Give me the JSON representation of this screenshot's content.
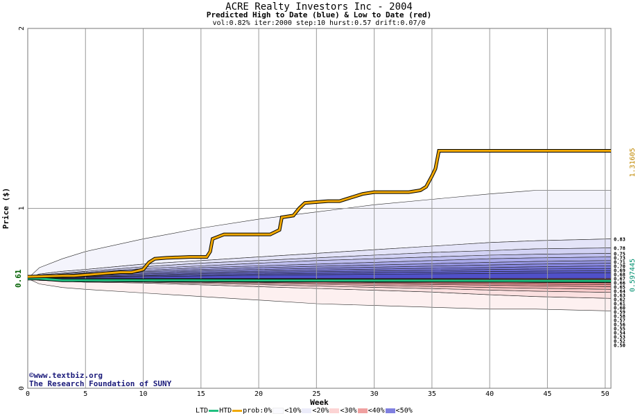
{
  "header": {
    "title": "ACRE Realty Investors Inc - 2004",
    "subtitle": "Predicted High to Date (blue) &  Low to Date (red)",
    "params": "vol:0.82% iter:2000 step:10 hurst:0.57 drift:0.07/0"
  },
  "credits": {
    "site": "©www.textbiz.org",
    "org": "The Research Foundation of SUNY"
  },
  "legend": {
    "ltd": "LTD",
    "htd": "HTD",
    "prob": "prob:0%",
    "b10": "<10%",
    "b20": "<20%",
    "b30": "<30%",
    "b40": "<40%",
    "b50": "<50%"
  },
  "chart_data": {
    "type": "line",
    "xlabel": "Week",
    "ylabel": "Price ($)",
    "xlim": [
      0,
      50.5
    ],
    "ylim": [
      0,
      2
    ],
    "xticks": [
      0,
      5,
      10,
      15,
      20,
      25,
      30,
      35,
      40,
      45,
      50
    ],
    "yticks": [
      0,
      1,
      2
    ],
    "grid": true,
    "start_price": 0.61,
    "start_label": "0.61",
    "end_high_label": "1.31605",
    "end_low_label": "0.597445",
    "colors": {
      "htd": "#f0a800",
      "ltd": "#20c080",
      "high_label": "#c08800",
      "low_label": "#009070",
      "start_label": "#006000"
    },
    "series": [
      {
        "name": "HTD",
        "x": [
          0,
          3,
          4,
          7,
          8,
          9,
          10,
          10.5,
          11,
          12,
          14,
          15.5,
          15.8,
          16,
          17,
          18,
          21,
          21.8,
          22,
          23,
          23.5,
          24,
          26,
          27,
          27.5,
          28,
          29,
          30,
          32,
          33,
          34,
          34.5,
          35,
          35.3,
          35.6,
          50.5
        ],
        "y": [
          0.62,
          0.625,
          0.625,
          0.64,
          0.645,
          0.645,
          0.66,
          0.7,
          0.72,
          0.725,
          0.73,
          0.73,
          0.76,
          0.83,
          0.855,
          0.855,
          0.855,
          0.88,
          0.95,
          0.96,
          1.0,
          1.03,
          1.04,
          1.04,
          1.05,
          1.06,
          1.08,
          1.09,
          1.09,
          1.09,
          1.1,
          1.12,
          1.18,
          1.22,
          1.32,
          1.32
        ]
      },
      {
        "name": "LTD",
        "x": [
          0,
          1,
          2,
          3,
          13.5,
          50.5
        ],
        "y": [
          0.61,
          0.61,
          0.605,
          0.6,
          0.6,
          0.597
        ]
      }
    ],
    "bands": {
      "x": [
        0,
        1,
        3,
        5,
        10,
        15,
        20,
        25,
        30,
        35,
        40,
        44,
        50.5
      ],
      "high": [
        [
          0.61,
          0.67,
          0.72,
          0.76,
          0.83,
          0.89,
          0.94,
          0.98,
          1.02,
          1.05,
          1.08,
          1.1,
          1.1
        ],
        [
          0.61,
          0.635,
          0.65,
          0.66,
          0.69,
          0.71,
          0.73,
          0.75,
          0.77,
          0.79,
          0.81,
          0.82,
          0.83
        ],
        [
          0.61,
          0.63,
          0.64,
          0.65,
          0.675,
          0.695,
          0.71,
          0.725,
          0.74,
          0.755,
          0.765,
          0.775,
          0.78
        ],
        [
          0.61,
          0.625,
          0.635,
          0.645,
          0.665,
          0.68,
          0.695,
          0.71,
          0.72,
          0.73,
          0.74,
          0.745,
          0.75
        ],
        [
          0.61,
          0.622,
          0.63,
          0.64,
          0.655,
          0.67,
          0.68,
          0.69,
          0.7,
          0.71,
          0.72,
          0.725,
          0.73
        ],
        [
          0.61,
          0.62,
          0.627,
          0.635,
          0.648,
          0.66,
          0.67,
          0.678,
          0.685,
          0.692,
          0.7,
          0.705,
          0.71
        ],
        [
          0.61,
          0.618,
          0.624,
          0.63,
          0.642,
          0.652,
          0.66,
          0.667,
          0.673,
          0.679,
          0.685,
          0.69,
          0.695
        ],
        [
          0.61,
          0.616,
          0.621,
          0.626,
          0.636,
          0.644,
          0.651,
          0.657,
          0.662,
          0.667,
          0.671,
          0.675,
          0.68
        ],
        [
          0.61,
          0.614,
          0.618,
          0.622,
          0.63,
          0.637,
          0.643,
          0.648,
          0.652,
          0.656,
          0.66,
          0.663,
          0.666
        ],
        [
          0.61,
          0.613,
          0.616,
          0.619,
          0.625,
          0.63,
          0.635,
          0.639,
          0.643,
          0.646,
          0.649,
          0.651,
          0.653
        ],
        [
          0.61,
          0.612,
          0.614,
          0.616,
          0.62,
          0.624,
          0.628,
          0.631,
          0.634,
          0.636,
          0.638,
          0.64,
          0.642
        ]
      ],
      "low": [
        [
          0.61,
          0.58,
          0.56,
          0.55,
          0.53,
          0.51,
          0.49,
          0.47,
          0.46,
          0.45,
          0.44,
          0.44,
          0.43
        ],
        [
          0.61,
          0.6,
          0.595,
          0.59,
          0.585,
          0.575,
          0.565,
          0.555,
          0.545,
          0.535,
          0.52,
          0.51,
          0.5
        ],
        [
          0.61,
          0.602,
          0.598,
          0.595,
          0.59,
          0.583,
          0.576,
          0.568,
          0.561,
          0.554,
          0.546,
          0.54,
          0.533
        ],
        [
          0.61,
          0.603,
          0.6,
          0.598,
          0.594,
          0.589,
          0.583,
          0.578,
          0.572,
          0.566,
          0.56,
          0.556,
          0.55
        ],
        [
          0.61,
          0.605,
          0.602,
          0.6,
          0.597,
          0.593,
          0.589,
          0.585,
          0.581,
          0.577,
          0.573,
          0.569,
          0.565
        ],
        [
          0.61,
          0.606,
          0.604,
          0.602,
          0.6,
          0.597,
          0.594,
          0.591,
          0.588,
          0.585,
          0.582,
          0.579,
          0.576
        ],
        [
          0.61,
          0.607,
          0.605,
          0.604,
          0.602,
          0.6,
          0.598,
          0.596,
          0.594,
          0.592,
          0.59,
          0.588,
          0.586
        ]
      ],
      "fills": [
        "#f4f4fc",
        "#e4e4f8",
        "#d2d2f4",
        "#c0c0f0",
        "#aaaaea",
        "#9898e6",
        "#8888e0",
        "#7878da",
        "#6a6ad4",
        "#5c5cce",
        "#5050c8"
      ],
      "low_fills": [
        "#fdf0f0",
        "#fbe0e0",
        "#f8cccc",
        "#f4b4b4",
        "#ee9c9c",
        "#e88888",
        "#e07070"
      ]
    },
    "right_labels": {
      "values": [
        0.83,
        0.78,
        0.75,
        0.73,
        0.71,
        0.7,
        0.69,
        0.68,
        0.67,
        0.66,
        0.65,
        0.64,
        0.63,
        0.62,
        0.61,
        0.6,
        0.59,
        0.58,
        0.57,
        0.56,
        0.55,
        0.54,
        0.53,
        0.52,
        0.5
      ],
      "labels": [
        "0.83",
        "0.78",
        "0.75",
        "0.73",
        "0.71",
        "0.70",
        "0.69",
        "0.68",
        "0.67",
        "0.66",
        "0.65",
        "0.64",
        "0.63",
        "0.62",
        "0.61",
        "0.60",
        "0.59",
        "0.58",
        "0.57",
        "0.56",
        "0.55",
        "0.54",
        "0.53",
        "0.52",
        "0.50"
      ]
    }
  }
}
